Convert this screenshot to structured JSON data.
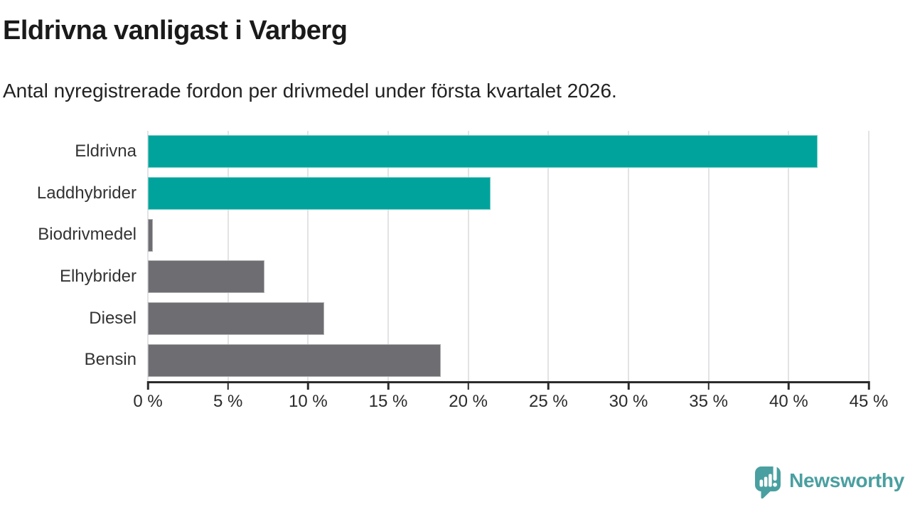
{
  "header": {
    "title": "Eldrivna vanligast i Varberg",
    "subtitle": "Antal nyregistrerade fordon per drivmedel under första kvartalet 2026."
  },
  "chart_data": {
    "type": "bar",
    "orientation": "horizontal",
    "title": "Eldrivna vanligast i Varberg",
    "categories": [
      "Eldrivna",
      "Laddhybrider",
      "Biodrivmedel",
      "Elhybrider",
      "Diesel",
      "Bensin"
    ],
    "values": [
      41.8,
      21.4,
      0.3,
      7.3,
      11.0,
      18.3
    ],
    "unit": "%",
    "bar_colors": [
      "#00a39b",
      "#00a39b",
      "#6d6d72",
      "#6d6d72",
      "#6d6d72",
      "#6d6d72"
    ],
    "xlim": [
      0,
      45
    ],
    "x_ticks": [
      0,
      5,
      10,
      15,
      20,
      25,
      30,
      35,
      40,
      45
    ],
    "x_tick_labels": [
      "0 %",
      "5 %",
      "10 %",
      "15 %",
      "20 %",
      "25 %",
      "30 %",
      "35 %",
      "40 %",
      "45 %"
    ],
    "grid": "vertical",
    "legend": "none"
  },
  "footer": {
    "brand": "Newsworthy"
  },
  "colors": {
    "highlight": "#00a39b",
    "neutral": "#6d6d72",
    "brand_teal": "#4a9fa0",
    "gridline": "#e3e3e6",
    "axis": "#2b2b2b",
    "background": "#ffffff"
  }
}
